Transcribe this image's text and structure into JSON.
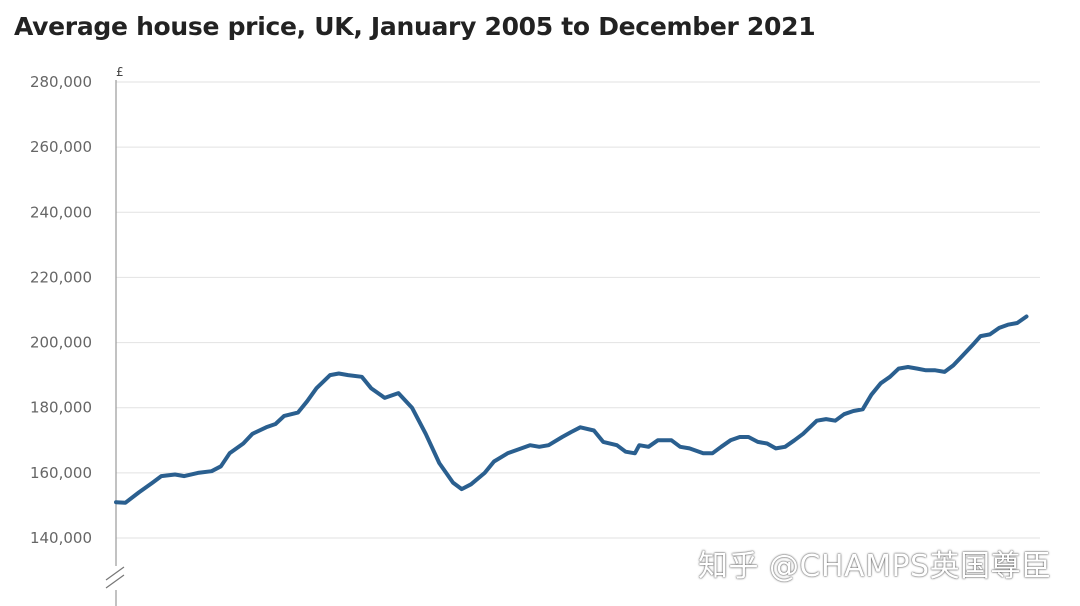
{
  "chart_data": {
    "type": "line",
    "title": "Average house price, UK, January 2005 to December 2021",
    "ylabel": "£",
    "xlabel": "",
    "ylim": [
      130000,
      280000
    ],
    "xlim": [
      2005.0,
      2021.917
    ],
    "y_ticks": [
      "140,000",
      "160,000",
      "180,000",
      "200,000",
      "220,000",
      "240,000",
      "260,000",
      "280,000"
    ],
    "grid": true,
    "axis_break": true,
    "line_color": "#2a5f8f",
    "series": [
      {
        "points": [
          [
            2005.0,
            151000
          ],
          [
            2005.17,
            150800
          ],
          [
            2005.42,
            154000
          ],
          [
            2005.67,
            157000
          ],
          [
            2005.83,
            159000
          ],
          [
            2006.08,
            159500
          ],
          [
            2006.25,
            159000
          ],
          [
            2006.5,
            160000
          ],
          [
            2006.75,
            160500
          ],
          [
            2006.92,
            162000
          ],
          [
            2007.08,
            166000
          ],
          [
            2007.33,
            169000
          ],
          [
            2007.5,
            172000
          ],
          [
            2007.75,
            174000
          ],
          [
            2007.92,
            175000
          ],
          [
            2008.08,
            177500
          ],
          [
            2008.33,
            178500
          ],
          [
            2008.5,
            182000
          ],
          [
            2008.67,
            186000
          ],
          [
            2008.92,
            190000
          ],
          [
            2009.08,
            190500
          ],
          [
            2009.25,
            190000
          ],
          [
            2009.5,
            189500
          ],
          [
            2009.67,
            186000
          ],
          [
            2009.92,
            183000
          ],
          [
            2010.17,
            184500
          ],
          [
            2010.42,
            180000
          ],
          [
            2010.67,
            172000
          ],
          [
            2010.92,
            163000
          ],
          [
            2011.17,
            157000
          ],
          [
            2011.33,
            155000
          ],
          [
            2011.5,
            156500
          ],
          [
            2011.75,
            160000
          ],
          [
            2011.92,
            163500
          ],
          [
            2012.17,
            166000
          ],
          [
            2012.42,
            167500
          ],
          [
            2012.58,
            168500
          ],
          [
            2012.75,
            168000
          ],
          [
            2012.92,
            168500
          ],
          [
            2013.17,
            171000
          ],
          [
            2013.33,
            172500
          ],
          [
            2013.5,
            174000
          ],
          [
            2013.75,
            173000
          ],
          [
            2013.92,
            169500
          ],
          [
            2014.17,
            168500
          ],
          [
            2014.33,
            166500
          ],
          [
            2014.5,
            166000
          ],
          [
            2014.58,
            168500
          ],
          [
            2014.75,
            168000
          ],
          [
            2014.92,
            170000
          ],
          [
            2015.17,
            170000
          ],
          [
            2015.33,
            168000
          ],
          [
            2015.5,
            167500
          ],
          [
            2015.75,
            166000
          ],
          [
            2015.92,
            166000
          ],
          [
            2016.08,
            168000
          ],
          [
            2016.25,
            170000
          ],
          [
            2016.42,
            171000
          ],
          [
            2016.58,
            171000
          ],
          [
            2016.75,
            169500
          ],
          [
            2016.92,
            169000
          ],
          [
            2017.08,
            167500
          ],
          [
            2017.25,
            168000
          ],
          [
            2017.42,
            170000
          ],
          [
            2017.58,
            172000
          ],
          [
            2017.83,
            176000
          ],
          [
            2018.0,
            176500
          ],
          [
            2018.17,
            176000
          ],
          [
            2018.33,
            178000
          ],
          [
            2018.5,
            179000
          ],
          [
            2018.67,
            179500
          ],
          [
            2018.83,
            184000
          ],
          [
            2019.0,
            187500
          ],
          [
            2019.17,
            189500
          ],
          [
            2019.33,
            192000
          ],
          [
            2019.5,
            192500
          ],
          [
            2019.67,
            192000
          ],
          [
            2019.83,
            191500
          ],
          [
            2020.0,
            191500
          ],
          [
            2020.17,
            191000
          ],
          [
            2020.33,
            193000
          ],
          [
            2020.5,
            196000
          ],
          [
            2020.67,
            199000
          ],
          [
            2020.83,
            202000
          ],
          [
            2021.0,
            202500
          ],
          [
            2021.17,
            204500
          ],
          [
            2021.33,
            205500
          ],
          [
            2021.5,
            206000
          ],
          [
            2021.67,
            208000
          ]
        ]
      }
    ]
  },
  "watermark": "知乎 @CHAMPS英国尊臣"
}
